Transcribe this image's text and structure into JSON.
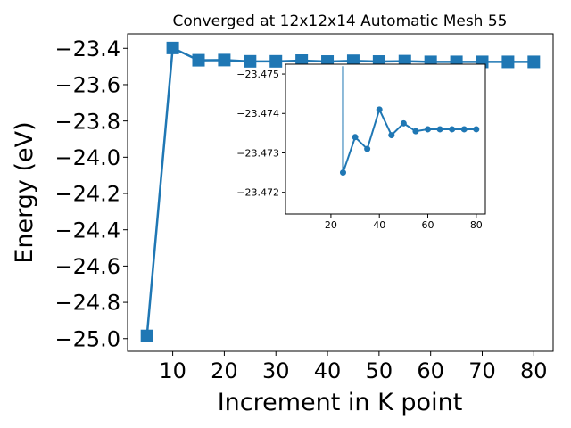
{
  "chart_data": [
    {
      "type": "line",
      "title": "Converged at 12x12x14 Automatic Mesh 55",
      "xlabel": "Increment in K point",
      "ylabel": "Energy (eV)",
      "xlim": [
        1.25,
        83.75
      ],
      "ylim": [
        -25.07,
        -23.32
      ],
      "xticks": [
        10,
        20,
        30,
        40,
        50,
        60,
        70,
        80
      ],
      "xtick_labels": [
        "10",
        "20",
        "30",
        "40",
        "50",
        "60",
        "70",
        "80"
      ],
      "yticks": [
        -25.0,
        -24.8,
        -24.6,
        -24.4,
        -24.2,
        -24.0,
        -23.8,
        -23.6,
        -23.4
      ],
      "ytick_labels": [
        "−25.0",
        "−24.8",
        "−24.6",
        "−24.4",
        "−24.2",
        "−24.0",
        "−23.8",
        "−23.6",
        "−23.4"
      ],
      "marker": "square",
      "color": "#1f77b4",
      "grid": false,
      "x": [
        5,
        10,
        15,
        20,
        25,
        30,
        35,
        40,
        45,
        50,
        55,
        60,
        65,
        70,
        75,
        80
      ],
      "y": [
        -24.985,
        -23.398,
        -23.4655,
        -23.4645,
        -23.4715,
        -23.4715,
        -23.4675,
        -23.4725,
        -23.4685,
        -23.4725,
        -23.4705,
        -23.4745,
        -23.4745,
        -23.4745,
        -23.4745,
        -23.4745
      ]
    },
    {
      "type": "line",
      "xlim": [
        1.25,
        83.75
      ],
      "ylim": [
        -23.47145,
        -23.47525
      ],
      "xticks": [
        20,
        40,
        60,
        80
      ],
      "xtick_labels": [
        "20",
        "40",
        "60",
        "80"
      ],
      "yticks": [
        -23.472,
        -23.473,
        -23.474,
        -23.475
      ],
      "ytick_labels": [
        "−23.472",
        "−23.473",
        "−23.474",
        "−23.475"
      ],
      "marker": "circle",
      "color": "#1f77b4",
      "grid": false,
      "x": [
        25,
        30,
        35,
        40,
        45,
        50,
        55,
        60,
        65,
        70,
        75,
        80
      ],
      "y": [
        -23.4725,
        -23.4734,
        -23.4731,
        -23.4741,
        -23.47345,
        -23.47375,
        -23.47355,
        -23.4736,
        -23.4736,
        -23.4736,
        -23.4736,
        -23.4736
      ]
    }
  ]
}
